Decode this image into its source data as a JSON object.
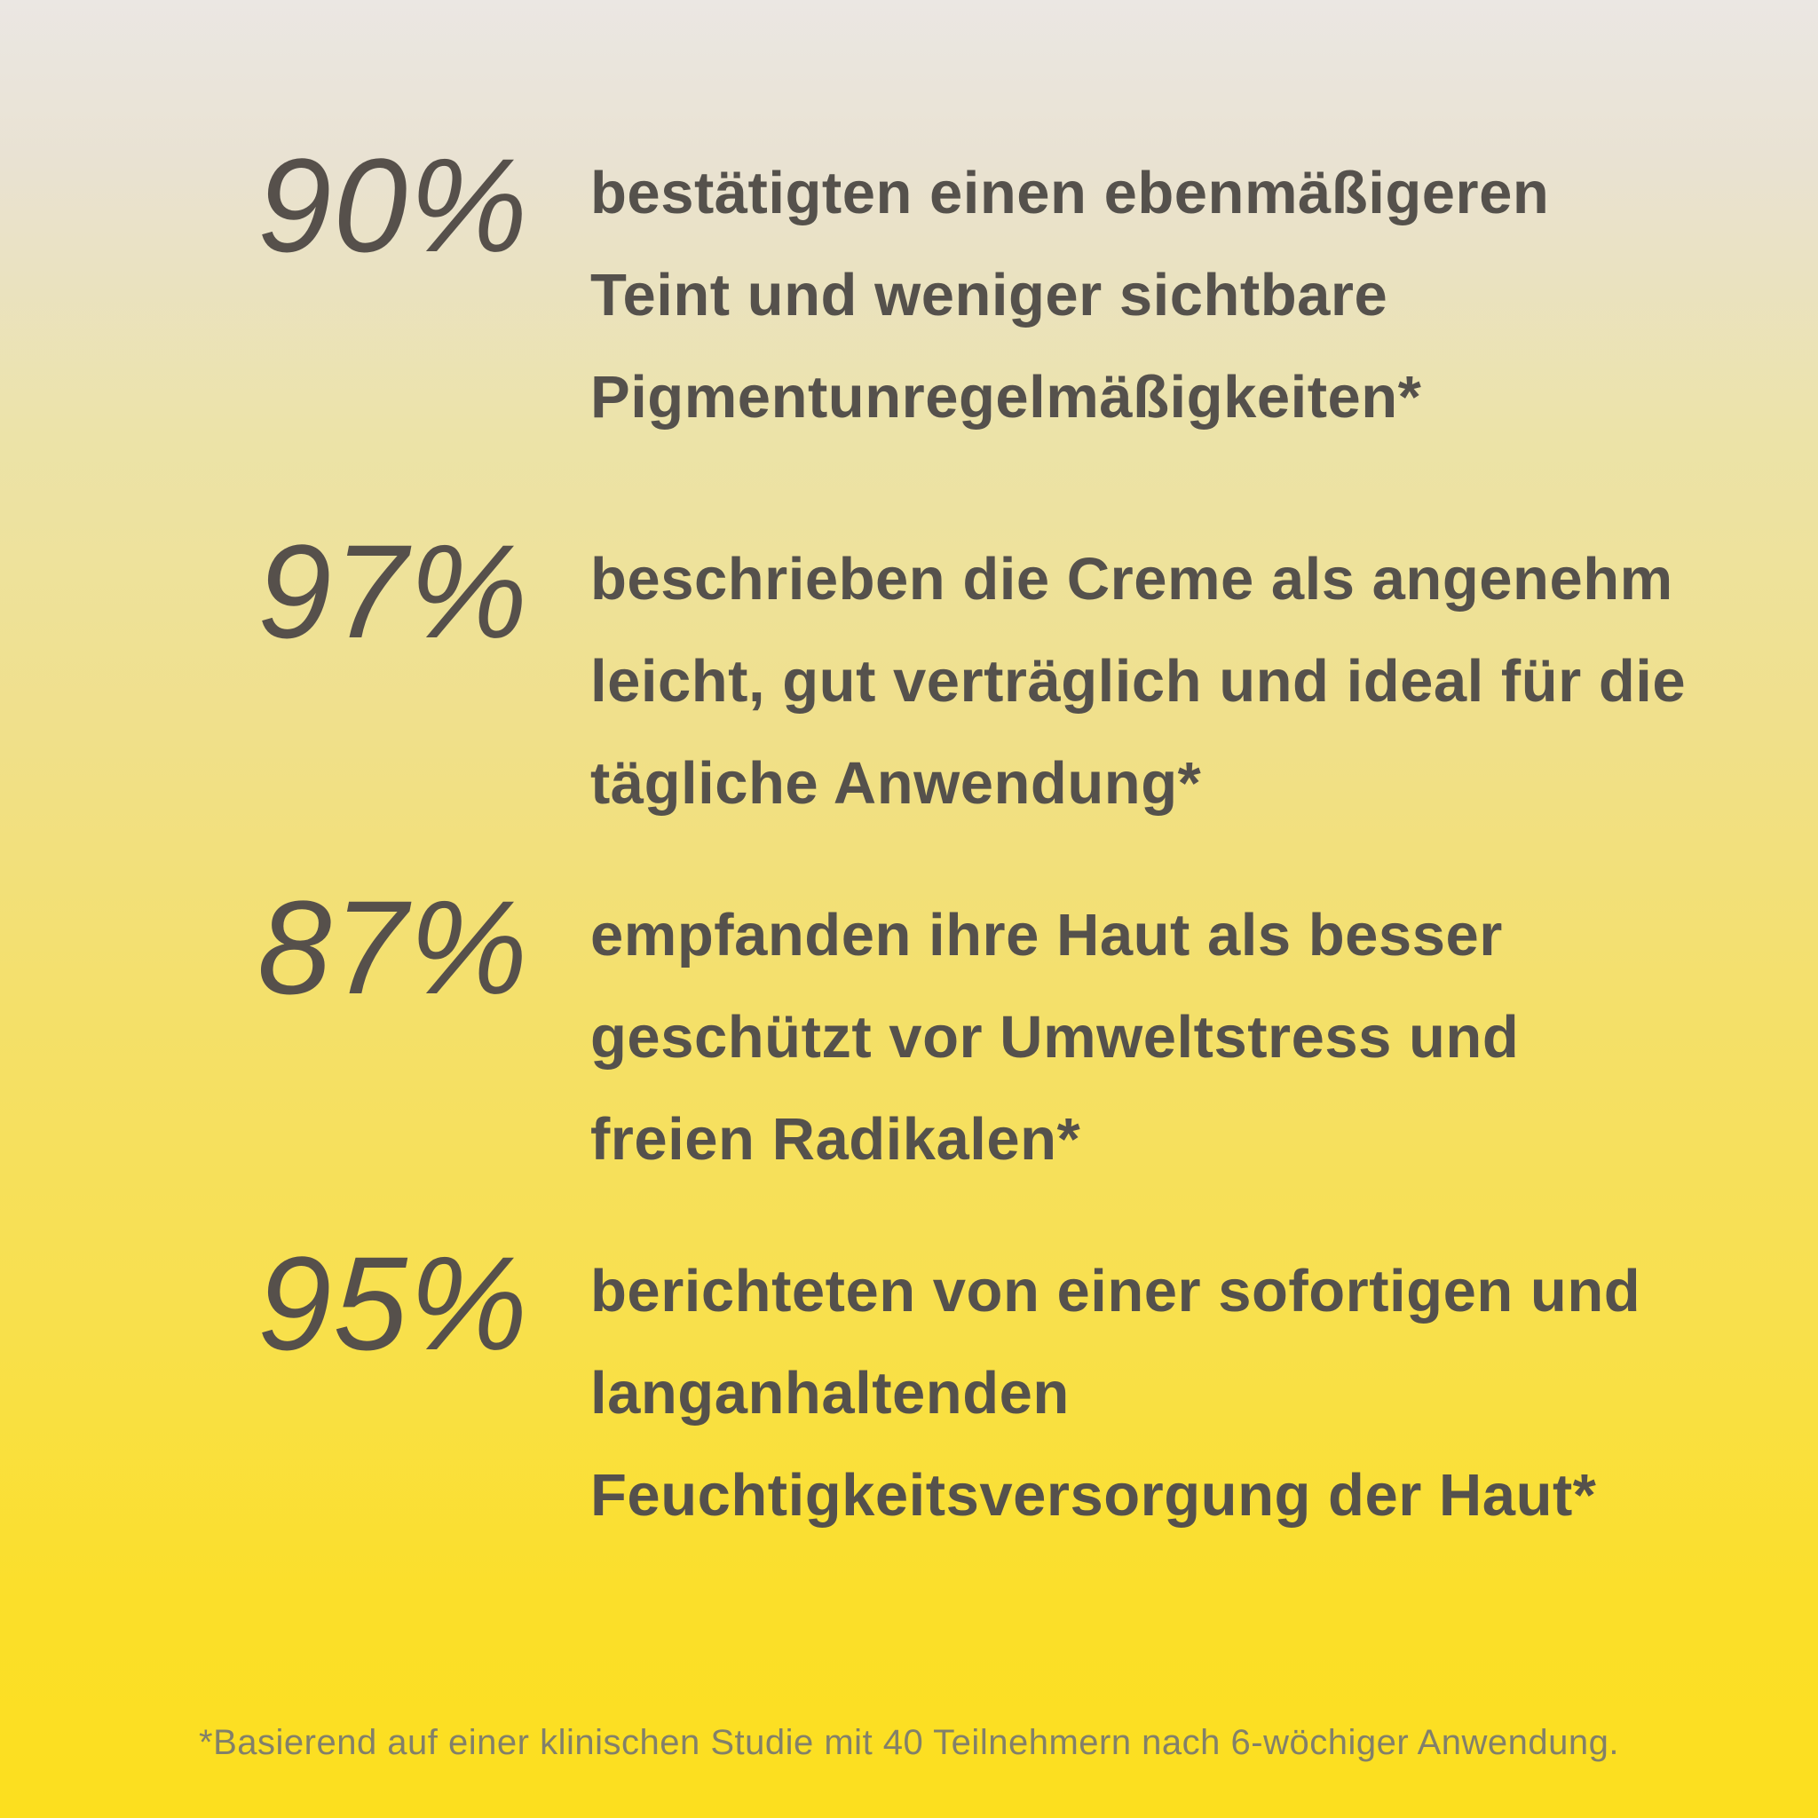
{
  "stats": [
    {
      "percent": "90%",
      "lines": [
        "bestätigten einen ebenmäßigeren",
        "Teint und weniger sichtbare",
        "Pigmentunregelmäßigkeiten*"
      ]
    },
    {
      "percent": "97%",
      "lines": [
        "beschrieben die Creme als angenehm",
        "leicht, gut verträglich und ideal für die",
        "tägliche Anwendung*"
      ]
    },
    {
      "percent": "87%",
      "lines": [
        "empfanden ihre Haut als besser",
        "geschützt vor Umweltstress und",
        "freien Radikalen*"
      ]
    },
    {
      "percent": "95%",
      "lines": [
        "berichteten von einer sofortigen und",
        "langanhaltenden",
        "Feuchtigkeitsversorgung der Haut*"
      ]
    }
  ],
  "footnote": "*Basierend auf einer klinischen Studie mit 40 Teilnehmern nach 6-wöchiger Anwendung.",
  "colors": {
    "background_top": "#ebe7e3",
    "background_bottom": "#fcdf1e",
    "text": "#55514c",
    "percent": "#56504b",
    "footnote": "#82806a"
  }
}
